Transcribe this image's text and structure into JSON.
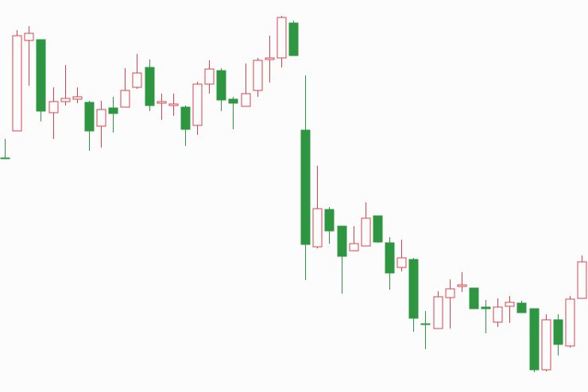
{
  "chart_data": {
    "type": "candlestick",
    "ylim": [
      0,
      494
    ],
    "up_color": "#d9434b",
    "down_color": "#2e9640",
    "open": [
      295,
      329,
      443,
      444,
      352,
      366,
      369,
      365,
      335,
      358,
      359,
      384,
      409,
      364,
      361,
      359,
      336,
      388,
      405,
      369,
      360,
      380,
      419,
      421,
      465,
      330,
      183,
      230,
      209,
      178,
      184,
      222,
      188,
      157,
      167,
      86,
      80,
      119,
      133,
      131,
      107,
      88,
      108,
      112,
      105,
      28,
      91,
      58,
      118
    ],
    "high": [
      319,
      456,
      461,
      444,
      384,
      412,
      384,
      367,
      367,
      372,
      408,
      426,
      419,
      376,
      376,
      361,
      391,
      418,
      408,
      372,
      414,
      421,
      449,
      474,
      468,
      399,
      285,
      233,
      209,
      209,
      239,
      222,
      195,
      192,
      169,
      102,
      127,
      142,
      151,
      131,
      116,
      118,
      121,
      115,
      105,
      98,
      98,
      121,
      172
    ],
    "low": [
      295,
      329,
      386,
      341,
      319,
      361,
      364,
      304,
      308,
      327,
      359,
      382,
      354,
      343,
      348,
      310,
      324,
      376,
      354,
      331,
      360,
      372,
      390,
      409,
      424,
      141,
      181,
      187,
      124,
      178,
      184,
      188,
      129,
      152,
      76,
      54,
      80,
      80,
      126,
      105,
      74,
      82,
      87,
      100,
      25,
      26,
      46,
      56,
      118
    ],
    "close": [
      295,
      449,
      452,
      354,
      366,
      370,
      372,
      329,
      356,
      351,
      380,
      402,
      361,
      366,
      363,
      331,
      388,
      407,
      368,
      364,
      376,
      418,
      421,
      472,
      424,
      186,
      231,
      203,
      171,
      187,
      219,
      189,
      150,
      169,
      93,
      85,
      120,
      130,
      135,
      105,
      105,
      107,
      113,
      100,
      28,
      91,
      60,
      117,
      164
    ]
  }
}
